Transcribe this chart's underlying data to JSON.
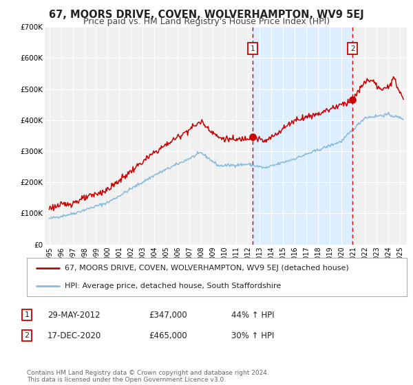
{
  "title": "67, MOORS DRIVE, COVEN, WOLVERHAMPTON, WV9 5EJ",
  "subtitle": "Price paid vs. HM Land Registry's House Price Index (HPI)",
  "legend_line1": "67, MOORS DRIVE, COVEN, WOLVERHAMPTON, WV9 5EJ (detached house)",
  "legend_line2": "HPI: Average price, detached house, South Staffordshire",
  "sale1_label": "1",
  "sale1_date": "29-MAY-2012",
  "sale1_price": "£347,000",
  "sale1_hpi": "44% ↑ HPI",
  "sale1_year": 2012.41,
  "sale1_value": 347000,
  "sale2_label": "2",
  "sale2_date": "17-DEC-2020",
  "sale2_price": "£465,000",
  "sale2_hpi": "30% ↑ HPI",
  "sale2_year": 2020.96,
  "sale2_value": 465000,
  "price_line_color": "#cc0000",
  "hpi_line_color": "#88bbdd",
  "vline_color": "#cc0000",
  "shade_color": "#ddeeff",
  "background_color": "#ffffff",
  "plot_bg_color": "#f0f0f0",
  "ylim": [
    0,
    700000
  ],
  "yticks": [
    0,
    100000,
    200000,
    300000,
    400000,
    500000,
    600000,
    700000
  ],
  "ytick_labels": [
    "£0",
    "£100K",
    "£200K",
    "£300K",
    "£400K",
    "£500K",
    "£600K",
    "£700K"
  ],
  "xlim_start": 1994.6,
  "xlim_end": 2025.6,
  "footer": "Contains HM Land Registry data © Crown copyright and database right 2024.\nThis data is licensed under the Open Government Licence v3.0.",
  "title_fontsize": 10.5,
  "subtitle_fontsize": 9,
  "tick_fontsize": 7.5,
  "legend_fontsize": 8,
  "footer_fontsize": 6.5
}
